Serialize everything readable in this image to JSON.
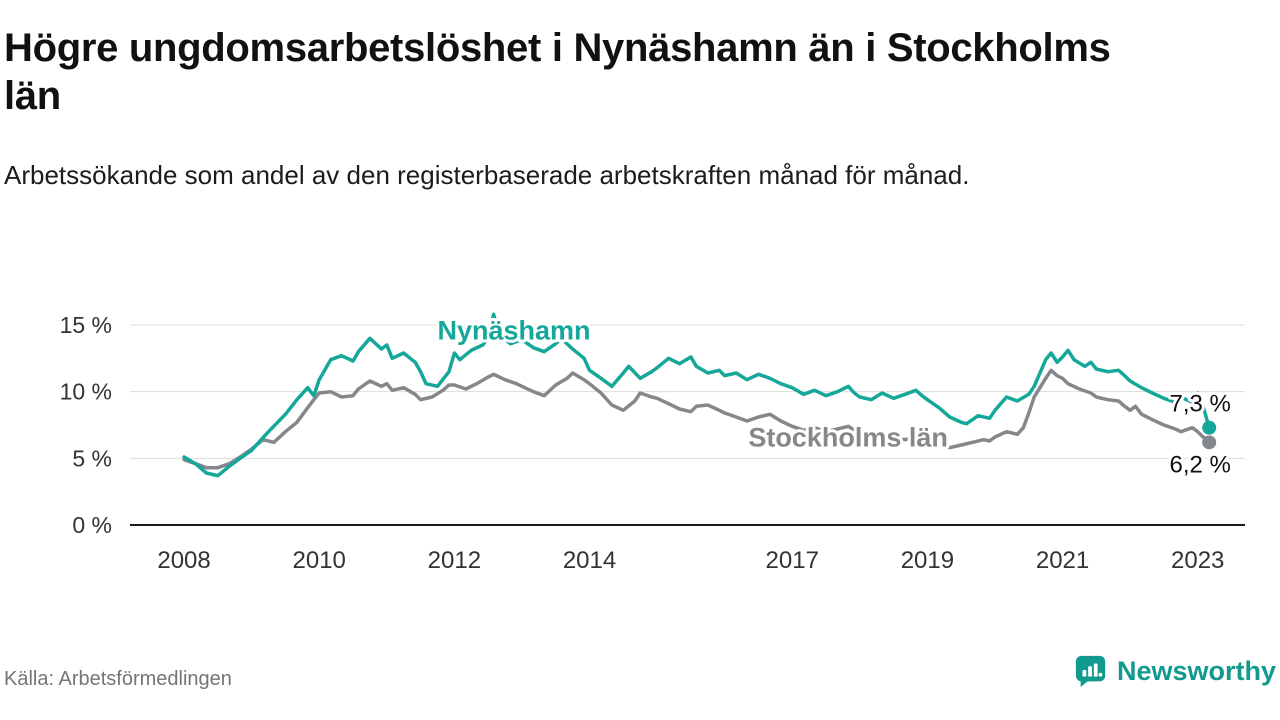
{
  "chart_data": {
    "type": "line",
    "title": "Högre ungdomsarbetslöshet i Nynäshamn än i Stockholms län",
    "subtitle": "Arbetssökande som andel av den registerbaserade arbetskraften månad för månad.",
    "unit": "%",
    "xlabel": "",
    "ylabel": "",
    "grid": "horizontal",
    "legend": "inline-labels",
    "x_range": [
      2007.2,
      2023.7
    ],
    "y_range": [
      0,
      15
    ],
    "x_tick_values": [
      2008,
      2010,
      2012,
      2014,
      2017,
      2019,
      2021,
      2023
    ],
    "x_tick_labels": [
      "2008",
      "2010",
      "2012",
      "2014",
      "2017",
      "2019",
      "2021",
      "2023"
    ],
    "y_ticks": [
      0,
      5,
      10,
      15
    ],
    "y_tick_labels": [
      "0 %",
      "5 %",
      "10 %",
      "15 %"
    ],
    "series": [
      {
        "name": "Nynäshamn",
        "color": "#14a79a",
        "end_value_label": "7,3 %",
        "end_label_side": "above",
        "label_pos": {
          "t": 2011.75,
          "v": 13.9
        },
        "points": [
          [
            2008.0,
            5.1
          ],
          [
            2008.17,
            4.6
          ],
          [
            2008.33,
            3.9
          ],
          [
            2008.5,
            3.7
          ],
          [
            2008.67,
            4.4
          ],
          [
            2008.83,
            5.0
          ],
          [
            2009.0,
            5.6
          ],
          [
            2009.25,
            7.0
          ],
          [
            2009.5,
            8.3
          ],
          [
            2009.67,
            9.4
          ],
          [
            2009.83,
            10.3
          ],
          [
            2009.92,
            9.7
          ],
          [
            2010.0,
            10.9
          ],
          [
            2010.17,
            12.4
          ],
          [
            2010.33,
            12.7
          ],
          [
            2010.5,
            12.3
          ],
          [
            2010.58,
            13.0
          ],
          [
            2010.75,
            14.0
          ],
          [
            2010.92,
            13.2
          ],
          [
            2011.0,
            13.5
          ],
          [
            2011.08,
            12.5
          ],
          [
            2011.25,
            12.9
          ],
          [
            2011.42,
            12.2
          ],
          [
            2011.5,
            11.5
          ],
          [
            2011.58,
            10.6
          ],
          [
            2011.75,
            10.4
          ],
          [
            2011.92,
            11.5
          ],
          [
            2012.0,
            12.9
          ],
          [
            2012.08,
            12.4
          ],
          [
            2012.25,
            13.1
          ],
          [
            2012.42,
            13.5
          ],
          [
            2012.5,
            14.0
          ],
          [
            2012.58,
            15.8
          ],
          [
            2012.67,
            14.2
          ],
          [
            2012.83,
            13.6
          ],
          [
            2013.0,
            13.9
          ],
          [
            2013.17,
            13.3
          ],
          [
            2013.33,
            13.0
          ],
          [
            2013.5,
            13.6
          ],
          [
            2013.58,
            14.0
          ],
          [
            2013.75,
            13.2
          ],
          [
            2013.92,
            12.5
          ],
          [
            2014.0,
            11.6
          ],
          [
            2014.17,
            11.0
          ],
          [
            2014.33,
            10.4
          ],
          [
            2014.5,
            11.4
          ],
          [
            2014.58,
            11.9
          ],
          [
            2014.75,
            11.0
          ],
          [
            2014.92,
            11.5
          ],
          [
            2015.0,
            11.8
          ],
          [
            2015.17,
            12.5
          ],
          [
            2015.33,
            12.1
          ],
          [
            2015.5,
            12.6
          ],
          [
            2015.58,
            11.9
          ],
          [
            2015.75,
            11.4
          ],
          [
            2015.92,
            11.6
          ],
          [
            2016.0,
            11.2
          ],
          [
            2016.17,
            11.4
          ],
          [
            2016.33,
            10.9
          ],
          [
            2016.5,
            11.3
          ],
          [
            2016.67,
            11.0
          ],
          [
            2016.83,
            10.6
          ],
          [
            2017.0,
            10.3
          ],
          [
            2017.17,
            9.8
          ],
          [
            2017.33,
            10.1
          ],
          [
            2017.5,
            9.7
          ],
          [
            2017.67,
            10.0
          ],
          [
            2017.83,
            10.4
          ],
          [
            2017.92,
            9.9
          ],
          [
            2018.0,
            9.6
          ],
          [
            2018.17,
            9.4
          ],
          [
            2018.33,
            9.9
          ],
          [
            2018.5,
            9.5
          ],
          [
            2018.67,
            9.8
          ],
          [
            2018.83,
            10.1
          ],
          [
            2018.92,
            9.7
          ],
          [
            2019.0,
            9.4
          ],
          [
            2019.17,
            8.8
          ],
          [
            2019.33,
            8.1
          ],
          [
            2019.5,
            7.7
          ],
          [
            2019.58,
            7.6
          ],
          [
            2019.75,
            8.2
          ],
          [
            2019.92,
            8.0
          ],
          [
            2020.0,
            8.6
          ],
          [
            2020.17,
            9.6
          ],
          [
            2020.33,
            9.3
          ],
          [
            2020.5,
            9.8
          ],
          [
            2020.58,
            10.4
          ],
          [
            2020.75,
            12.4
          ],
          [
            2020.83,
            12.9
          ],
          [
            2020.92,
            12.2
          ],
          [
            2021.0,
            12.6
          ],
          [
            2021.08,
            13.1
          ],
          [
            2021.17,
            12.4
          ],
          [
            2021.33,
            11.9
          ],
          [
            2021.42,
            12.2
          ],
          [
            2021.5,
            11.7
          ],
          [
            2021.67,
            11.5
          ],
          [
            2021.83,
            11.6
          ],
          [
            2021.92,
            11.2
          ],
          [
            2022.0,
            10.8
          ],
          [
            2022.17,
            10.3
          ],
          [
            2022.33,
            9.9
          ],
          [
            2022.5,
            9.5
          ],
          [
            2022.67,
            9.2
          ],
          [
            2022.75,
            9.6
          ],
          [
            2022.92,
            9.2
          ],
          [
            2023.0,
            9.9
          ],
          [
            2023.08,
            8.9
          ],
          [
            2023.17,
            7.3
          ]
        ]
      },
      {
        "name": "Stockholms län",
        "color": "#85888b",
        "end_value_label": "6,2 %",
        "end_label_side": "below",
        "label_pos": {
          "t": 2016.35,
          "v": 5.9
        },
        "points": [
          [
            2008.0,
            4.9
          ],
          [
            2008.17,
            4.6
          ],
          [
            2008.33,
            4.3
          ],
          [
            2008.5,
            4.3
          ],
          [
            2008.67,
            4.6
          ],
          [
            2008.83,
            5.1
          ],
          [
            2009.0,
            5.7
          ],
          [
            2009.17,
            6.4
          ],
          [
            2009.33,
            6.2
          ],
          [
            2009.5,
            7.0
          ],
          [
            2009.67,
            7.7
          ],
          [
            2009.83,
            8.8
          ],
          [
            2009.92,
            9.4
          ],
          [
            2010.0,
            9.9
          ],
          [
            2010.17,
            10.0
          ],
          [
            2010.33,
            9.6
          ],
          [
            2010.5,
            9.7
          ],
          [
            2010.58,
            10.2
          ],
          [
            2010.75,
            10.8
          ],
          [
            2010.92,
            10.4
          ],
          [
            2011.0,
            10.6
          ],
          [
            2011.08,
            10.1
          ],
          [
            2011.25,
            10.3
          ],
          [
            2011.42,
            9.8
          ],
          [
            2011.5,
            9.4
          ],
          [
            2011.67,
            9.6
          ],
          [
            2011.83,
            10.1
          ],
          [
            2011.92,
            10.5
          ],
          [
            2012.0,
            10.5
          ],
          [
            2012.17,
            10.2
          ],
          [
            2012.33,
            10.6
          ],
          [
            2012.5,
            11.1
          ],
          [
            2012.58,
            11.3
          ],
          [
            2012.75,
            10.9
          ],
          [
            2012.92,
            10.6
          ],
          [
            2013.0,
            10.4
          ],
          [
            2013.17,
            10.0
          ],
          [
            2013.33,
            9.7
          ],
          [
            2013.5,
            10.5
          ],
          [
            2013.67,
            11.0
          ],
          [
            2013.75,
            11.4
          ],
          [
            2013.92,
            10.9
          ],
          [
            2014.0,
            10.6
          ],
          [
            2014.17,
            9.9
          ],
          [
            2014.33,
            9.0
          ],
          [
            2014.5,
            8.6
          ],
          [
            2014.67,
            9.3
          ],
          [
            2014.75,
            9.9
          ],
          [
            2014.92,
            9.6
          ],
          [
            2015.0,
            9.5
          ],
          [
            2015.17,
            9.1
          ],
          [
            2015.33,
            8.7
          ],
          [
            2015.5,
            8.5
          ],
          [
            2015.58,
            8.9
          ],
          [
            2015.75,
            9.0
          ],
          [
            2015.92,
            8.6
          ],
          [
            2016.0,
            8.4
          ],
          [
            2016.17,
            8.1
          ],
          [
            2016.33,
            7.8
          ],
          [
            2016.5,
            8.1
          ],
          [
            2016.67,
            8.3
          ],
          [
            2016.83,
            7.8
          ],
          [
            2017.0,
            7.4
          ],
          [
            2017.17,
            7.1
          ],
          [
            2017.33,
            7.3
          ],
          [
            2017.5,
            7.0
          ],
          [
            2017.67,
            7.2
          ],
          [
            2017.83,
            7.4
          ],
          [
            2017.92,
            7.1
          ],
          [
            2018.0,
            6.9
          ],
          [
            2018.17,
            6.6
          ],
          [
            2018.33,
            6.8
          ],
          [
            2018.5,
            6.5
          ],
          [
            2018.67,
            6.4
          ],
          [
            2018.83,
            6.6
          ],
          [
            2018.92,
            6.3
          ],
          [
            2019.0,
            6.1
          ],
          [
            2019.17,
            5.9
          ],
          [
            2019.33,
            5.8
          ],
          [
            2019.5,
            6.0
          ],
          [
            2019.67,
            6.2
          ],
          [
            2019.83,
            6.4
          ],
          [
            2019.92,
            6.3
          ],
          [
            2020.0,
            6.6
          ],
          [
            2020.17,
            7.0
          ],
          [
            2020.33,
            6.8
          ],
          [
            2020.42,
            7.3
          ],
          [
            2020.5,
            8.4
          ],
          [
            2020.58,
            9.6
          ],
          [
            2020.75,
            11.0
          ],
          [
            2020.83,
            11.6
          ],
          [
            2020.92,
            11.2
          ],
          [
            2021.0,
            11.0
          ],
          [
            2021.08,
            10.6
          ],
          [
            2021.25,
            10.2
          ],
          [
            2021.42,
            9.9
          ],
          [
            2021.5,
            9.6
          ],
          [
            2021.67,
            9.4
          ],
          [
            2021.83,
            9.3
          ],
          [
            2021.92,
            8.9
          ],
          [
            2022.0,
            8.6
          ],
          [
            2022.08,
            8.9
          ],
          [
            2022.17,
            8.3
          ],
          [
            2022.33,
            7.9
          ],
          [
            2022.5,
            7.5
          ],
          [
            2022.67,
            7.2
          ],
          [
            2022.75,
            7.0
          ],
          [
            2022.92,
            7.3
          ],
          [
            2023.0,
            7.0
          ],
          [
            2023.08,
            6.6
          ],
          [
            2023.17,
            6.2
          ]
        ]
      }
    ]
  },
  "footer": {
    "source": "Källa: Arbetsförmedlingen",
    "brand_name": "Newsworthy"
  },
  "colors": {
    "nynashamn": "#14a79a",
    "stockholms_lan": "#85888b",
    "text": "#111111",
    "tick_text": "#333333",
    "muted_text": "#757575",
    "grid": "#dcdcdc",
    "axis": "#1a1a1a",
    "brand_teal": "#129a8e",
    "background": "#ffffff"
  }
}
